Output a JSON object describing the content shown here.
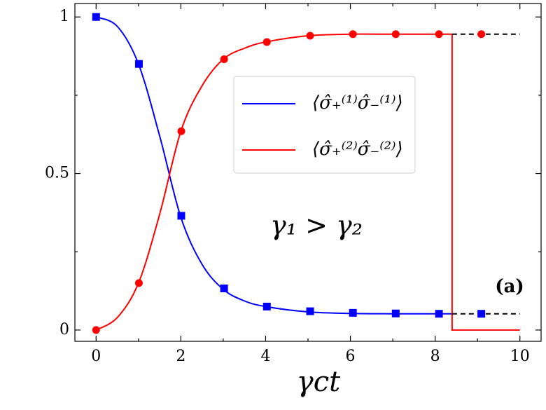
{
  "chart_data": {
    "type": "line",
    "xlabel": "γct",
    "annotations": [
      "γ₁ > γ₂",
      "(a)"
    ],
    "xlim": [
      -0.5,
      10.5
    ],
    "ylim": [
      -0.036,
      1.043
    ],
    "xticks": [
      0,
      2,
      4,
      6,
      8,
      10
    ],
    "yticks": [
      0,
      0.5,
      1
    ],
    "xminor": [
      1,
      3,
      5,
      7,
      9
    ],
    "yminor": [
      0.25,
      0.75
    ],
    "legend": "upper-center",
    "series": [
      {
        "name": "⟨σ̂₊⁽¹⁾σ̂₋⁽¹⁾⟩",
        "color": "#0000ff",
        "style": "line",
        "smooth": true,
        "x": [
          0,
          0.5,
          1,
          1.5,
          2,
          2.5,
          3,
          3.5,
          4,
          5,
          6,
          7,
          8,
          8.4
        ],
        "values": [
          1,
          0.97,
          0.85,
          0.62,
          0.36,
          0.21,
          0.13,
          0.093,
          0.075,
          0.058,
          0.053,
          0.052,
          0.052,
          0.052
        ]
      },
      {
        "name": "⟨σ̂₊⁽²⁾σ̂₋⁽²⁾⟩",
        "color": "#ff0000",
        "style": "line",
        "smooth": true,
        "x": [
          0,
          0.5,
          1,
          1.5,
          2,
          2.5,
          3,
          3.5,
          4,
          5,
          6,
          7,
          8,
          8.4
        ],
        "values": [
          0,
          0.04,
          0.15,
          0.37,
          0.635,
          0.78,
          0.865,
          0.9,
          0.92,
          0.94,
          0.945,
          0.945,
          0.945,
          0.945
        ]
      },
      {
        "color": "#ff0000",
        "style": "line",
        "smooth": false,
        "x": [
          8.4,
          8.4,
          10
        ],
        "values": [
          0.945,
          0,
          0
        ]
      },
      {
        "color": "#000000",
        "style": "line",
        "dash": true,
        "smooth": false,
        "x": [
          8.4,
          10
        ],
        "values": [
          0.945,
          0.945
        ]
      },
      {
        "color": "#000000",
        "style": "line",
        "dash": true,
        "smooth": false,
        "x": [
          8.4,
          10
        ],
        "values": [
          0.052,
          0.052
        ]
      },
      {
        "color": "#0000ff",
        "style": "markers",
        "marker": "square",
        "x": [
          0,
          1.01,
          2.01,
          3.02,
          4.03,
          5.05,
          6.06,
          7.07,
          8.09,
          9.09
        ],
        "values": [
          1,
          0.85,
          0.365,
          0.133,
          0.075,
          0.06,
          0.055,
          0.053,
          0.052,
          0.052
        ]
      },
      {
        "color": "#ff0000",
        "style": "markers",
        "marker": "circle",
        "x": [
          0,
          1.01,
          2.01,
          3.02,
          4.03,
          5.05,
          6.06,
          7.07,
          8.09,
          9.09
        ],
        "values": [
          0,
          0.15,
          0.635,
          0.865,
          0.92,
          0.94,
          0.945,
          0.945,
          0.945,
          0.945
        ]
      }
    ]
  }
}
